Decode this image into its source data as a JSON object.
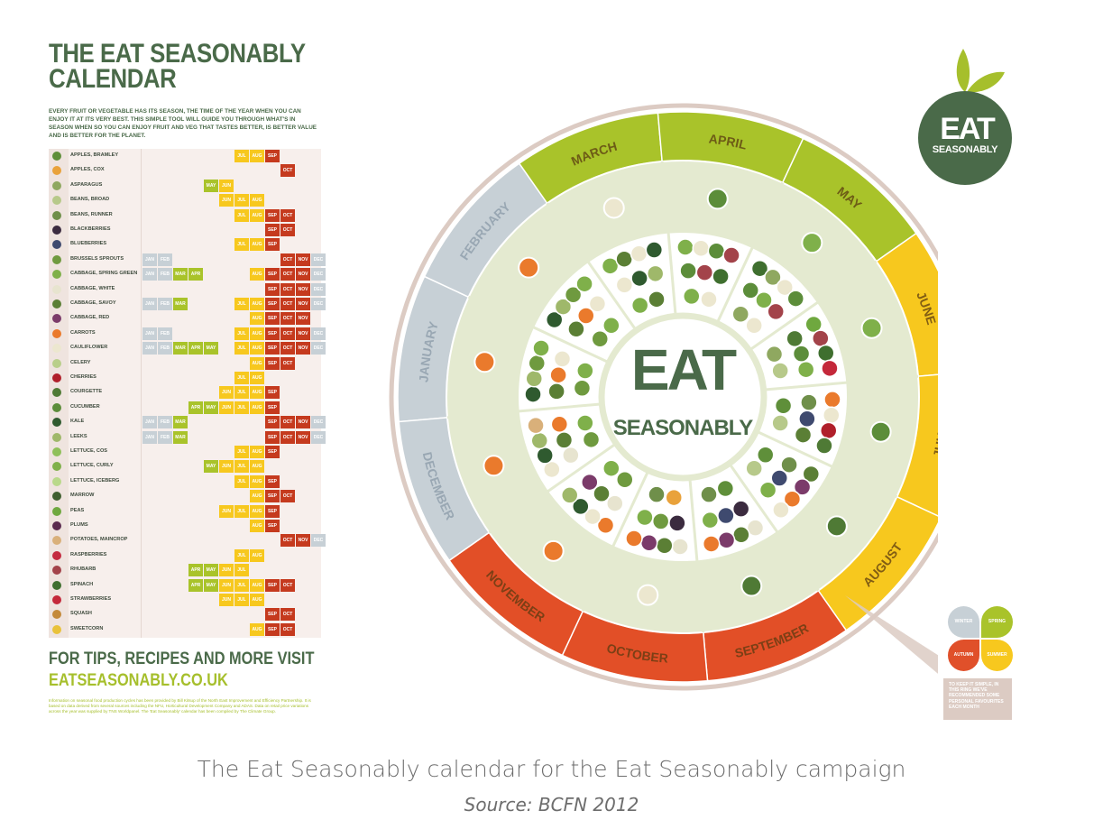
{
  "poster": {
    "title_line1": "THE EAT SEASONABLY",
    "title_line2": "CALENDAR",
    "intro": "EVERY FRUIT OR VEGETABLE HAS ITS SEASON, THE TIME OF THE YEAR WHEN YOU CAN ENJOY IT AT ITS VERY BEST.  THIS SIMPLE TOOL WILL GUIDE YOU THROUGH WHAT'S IN SEASON WHEN SO YOU CAN ENJOY FRUIT AND VEG THAT TASTES BETTER, IS BETTER VALUE AND IS BETTER FOR THE PLANET.",
    "footer_line1": "FOR TIPS, RECIPES AND MORE VISIT",
    "footer_line2": "EATSEASONABLY.CO.UK",
    "footnote": "Information on seasonal food production cycles has been provided by Bill Kitsup of the North East Improvement and Efficiency Partnership.  It is based on data derived from several sources including the NFU, Horticultural Development Company and ADAS.  Data on retail price variations across the year was supplied by TNS Worldpanel.  The 'Eat Seasonably' calendar has been compiled by The Climate Group.",
    "logo_line1": "EAT",
    "logo_line2": "SEASONABLY",
    "wheel_center_line1": "EAT",
    "wheel_center_line2": "SEASONABLY",
    "legend": {
      "winter": "WINTER",
      "spring": "SPRING",
      "autumn": "AUTUMN",
      "summer": "SUMMER"
    },
    "callout": "TO KEEP IT SIMPLE, IN THIS RING WE'VE RECOMMENDED SOME PERSONAL FAVOURITES EACH MONTH",
    "caption": "The Eat Seasonably calendar for the Eat Seasonably campaign",
    "source": "Source:  BCFN 2012"
  },
  "colors": {
    "green_dark": "#4a6a49",
    "lime": "#a6bf2c",
    "winter": "#c7d0d6",
    "spring": "#a9c32a",
    "summer": "#f7c81e",
    "autumn": "#e0502a",
    "autumn_dark": "#c53a1e",
    "ring_outline": "#dccbc3",
    "inner_fill": "#e4ead0"
  },
  "months": [
    "JAN",
    "FEB",
    "MAR",
    "APR",
    "MAY",
    "JUN",
    "JUL",
    "AUG",
    "SEP",
    "OCT",
    "NOV",
    "DEC"
  ],
  "wheel_months": [
    {
      "label": "JANUARY",
      "season": "winter"
    },
    {
      "label": "FEBRUARY",
      "season": "winter"
    },
    {
      "label": "MARCH",
      "season": "spring"
    },
    {
      "label": "APRIL",
      "season": "spring"
    },
    {
      "label": "MAY",
      "season": "spring"
    },
    {
      "label": "JUNE",
      "season": "summer"
    },
    {
      "label": "JULY",
      "season": "summer"
    },
    {
      "label": "AUGUST",
      "season": "summer"
    },
    {
      "label": "SEPTEMBER",
      "season": "autumn"
    },
    {
      "label": "OCTOBER",
      "season": "autumn"
    },
    {
      "label": "NOVEMBER",
      "season": "autumn"
    },
    {
      "label": "DECEMBER",
      "season": "winter"
    }
  ],
  "produce": [
    {
      "name": "APPLES, BRAMLEY",
      "months": [
        7,
        8,
        9
      ],
      "color": "#5f8f3a"
    },
    {
      "name": "APPLES, COX",
      "months": [
        10
      ],
      "color": "#e9a23b"
    },
    {
      "name": "ASPARAGUS",
      "months": [
        5,
        6
      ],
      "color": "#8fa860"
    },
    {
      "name": "BEANS, BROAD",
      "months": [
        6,
        7,
        8
      ],
      "color": "#b7c98a"
    },
    {
      "name": "BEANS, RUNNER",
      "months": [
        7,
        8,
        9,
        10
      ],
      "color": "#6f8f4a"
    },
    {
      "name": "BLACKBERRIES",
      "months": [
        9,
        10
      ],
      "color": "#3b2b3f"
    },
    {
      "name": "BLUEBERRIES",
      "months": [
        7,
        8,
        9
      ],
      "color": "#3f4a6f"
    },
    {
      "name": "BRUSSELS SPROUTS",
      "months": [
        1,
        2,
        10,
        11,
        12
      ],
      "color": "#6f9a3f"
    },
    {
      "name": "CABBAGE, SPRING GREEN",
      "months": [
        1,
        2,
        3,
        4,
        8,
        9,
        10,
        11,
        12
      ],
      "color": "#7fb04a"
    },
    {
      "name": "CABBAGE, WHITE",
      "months": [
        9,
        10,
        11,
        12
      ],
      "color": "#e7e4cf"
    },
    {
      "name": "CABBAGE, SAVOY",
      "months": [
        1,
        2,
        3,
        7,
        8,
        9,
        10,
        11,
        12
      ],
      "color": "#5b7f35"
    },
    {
      "name": "CABBAGE, RED",
      "months": [
        8,
        9,
        10,
        11
      ],
      "color": "#7b3b6a"
    },
    {
      "name": "CARROTS",
      "months": [
        1,
        2,
        7,
        8,
        9,
        10,
        11,
        12
      ],
      "color": "#ea7a2c"
    },
    {
      "name": "CAULIFLOWER",
      "months": [
        1,
        2,
        3,
        4,
        5,
        7,
        8,
        9,
        10,
        11,
        12
      ],
      "color": "#ece7cf"
    },
    {
      "name": "CELERY",
      "months": [
        8,
        9,
        10
      ],
      "color": "#b9cf8a"
    },
    {
      "name": "CHERRIES",
      "months": [
        7,
        8
      ],
      "color": "#b01f2a"
    },
    {
      "name": "COURGETTE",
      "months": [
        6,
        7,
        8,
        9
      ],
      "color": "#4f7a35"
    },
    {
      "name": "CUCUMBER",
      "months": [
        4,
        5,
        6,
        7,
        8,
        9
      ],
      "color": "#5c8d3a"
    },
    {
      "name": "KALE",
      "months": [
        1,
        2,
        3,
        9,
        10,
        11,
        12
      ],
      "color": "#2f5a2f"
    },
    {
      "name": "LEEKS",
      "months": [
        1,
        2,
        3,
        9,
        10,
        11,
        12
      ],
      "color": "#9fb86a"
    },
    {
      "name": "LETTUCE, COS",
      "months": [
        7,
        8,
        9
      ],
      "color": "#8fc05a"
    },
    {
      "name": "LETTUCE, CURLY",
      "months": [
        5,
        6,
        7,
        8
      ],
      "color": "#7fb04a"
    },
    {
      "name": "LETTUCE, ICEBERG",
      "months": [
        7,
        8,
        9
      ],
      "color": "#b9d98a"
    },
    {
      "name": "MARROW",
      "months": [
        8,
        9,
        10
      ],
      "color": "#3f5f2f"
    },
    {
      "name": "PEAS",
      "months": [
        6,
        7,
        8,
        9
      ],
      "color": "#6fa83f"
    },
    {
      "name": "PLUMS",
      "months": [
        8,
        9
      ],
      "color": "#5b2b4f"
    },
    {
      "name": "POTATOES, MAINCROP",
      "months": [
        10,
        11,
        12
      ],
      "color": "#d9b07a"
    },
    {
      "name": "RASPBERRIES",
      "months": [
        7,
        8
      ],
      "color": "#c42a3f"
    },
    {
      "name": "RHUBARB",
      "months": [
        4,
        5,
        6,
        7
      ],
      "color": "#a3434a"
    },
    {
      "name": "SPINACH",
      "months": [
        4,
        5,
        6,
        7,
        8,
        9,
        10
      ],
      "color": "#3f6f2f"
    },
    {
      "name": "STRAWBERRIES",
      "months": [
        6,
        7,
        8
      ],
      "color": "#c4283a"
    },
    {
      "name": "SQUASH",
      "months": [
        9,
        10
      ],
      "color": "#c48a3a"
    },
    {
      "name": "SWEETCORN",
      "months": [
        8,
        9,
        10
      ],
      "color": "#e9c23a"
    }
  ]
}
